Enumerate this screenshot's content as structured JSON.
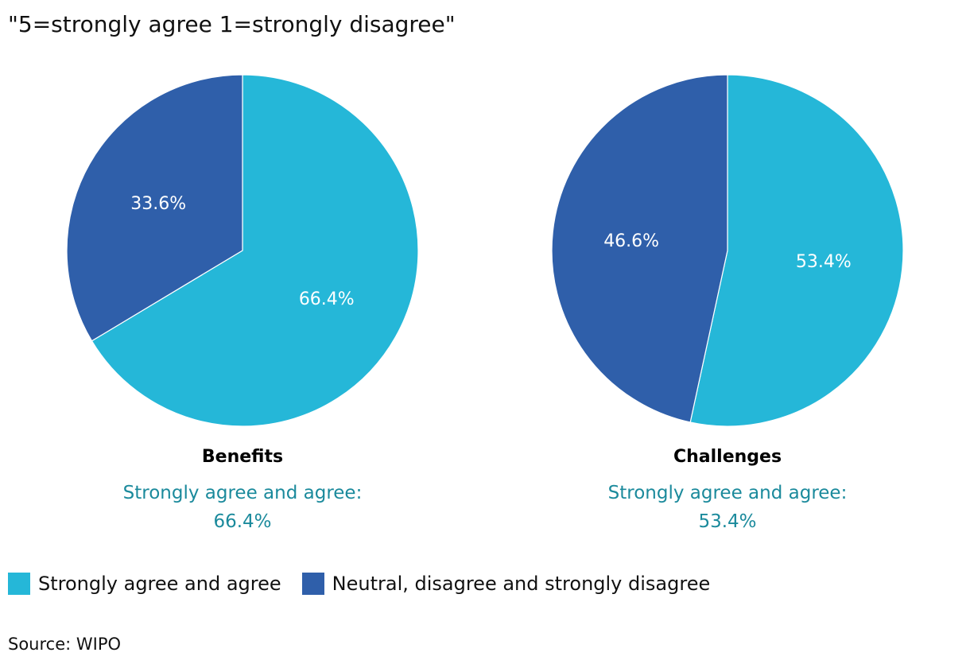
{
  "subtitle": "\"5=strongly agree 1=strongly disagree\"",
  "colors": {
    "agree": "#25b7d8",
    "neutral": "#2f5faa",
    "summary_text": "#1b8a9c",
    "slice_label": "#ffffff"
  },
  "chart_data": [
    {
      "type": "pie",
      "title": "Benefits",
      "summary_label": "Strongly agree and agree:",
      "summary_value": "66.4%",
      "slices": [
        {
          "name": "Strongly agree and agree",
          "value": 66.4,
          "label": "66.4%"
        },
        {
          "name": "Neutral, disagree and strongly disagree",
          "value": 33.6,
          "label": "33.6%"
        }
      ]
    },
    {
      "type": "pie",
      "title": "Challenges",
      "summary_label": "Strongly agree and agree:",
      "summary_value": "53.4%",
      "slices": [
        {
          "name": "Strongly agree and agree",
          "value": 53.4,
          "label": "53.4%"
        },
        {
          "name": "Neutral, disagree and strongly disagree",
          "value": 46.6,
          "label": "46.6%"
        }
      ]
    }
  ],
  "legend": [
    {
      "label": "Strongly agree and agree"
    },
    {
      "label": "Neutral, disagree and strongly disagree"
    }
  ],
  "source": "Source: WIPO"
}
